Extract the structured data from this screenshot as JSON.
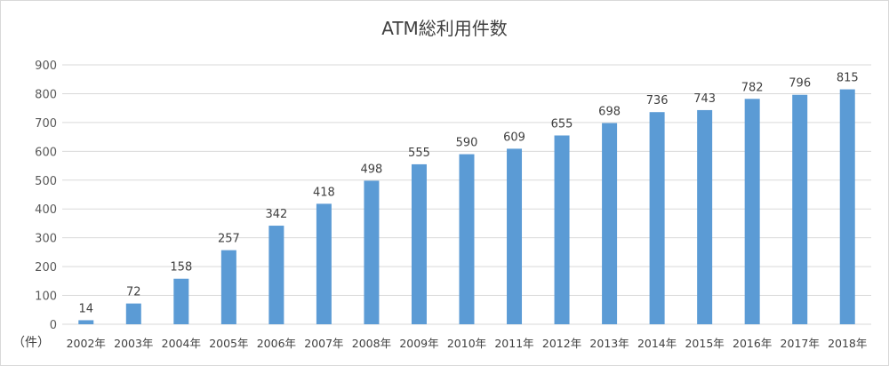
{
  "chart_data": {
    "type": "bar",
    "title": "ATM総利用件数",
    "unit_label": "（件）",
    "categories": [
      "2002年",
      "2003年",
      "2004年",
      "2005年",
      "2006年",
      "2007年",
      "2008年",
      "2009年",
      "2010年",
      "2011年",
      "2012年",
      "2013年",
      "2014年",
      "2015年",
      "2016年",
      "2017年",
      "2018年"
    ],
    "values": [
      14,
      72,
      158,
      257,
      342,
      418,
      498,
      555,
      590,
      609,
      655,
      698,
      736,
      743,
      782,
      796,
      815
    ],
    "ylim": [
      0,
      900
    ],
    "yticks": [
      0,
      100,
      200,
      300,
      400,
      500,
      600,
      700,
      800,
      900
    ],
    "xlabel": "",
    "ylabel": "",
    "grid": true,
    "data_labels": true,
    "bar_color": "#5b9bd5"
  }
}
